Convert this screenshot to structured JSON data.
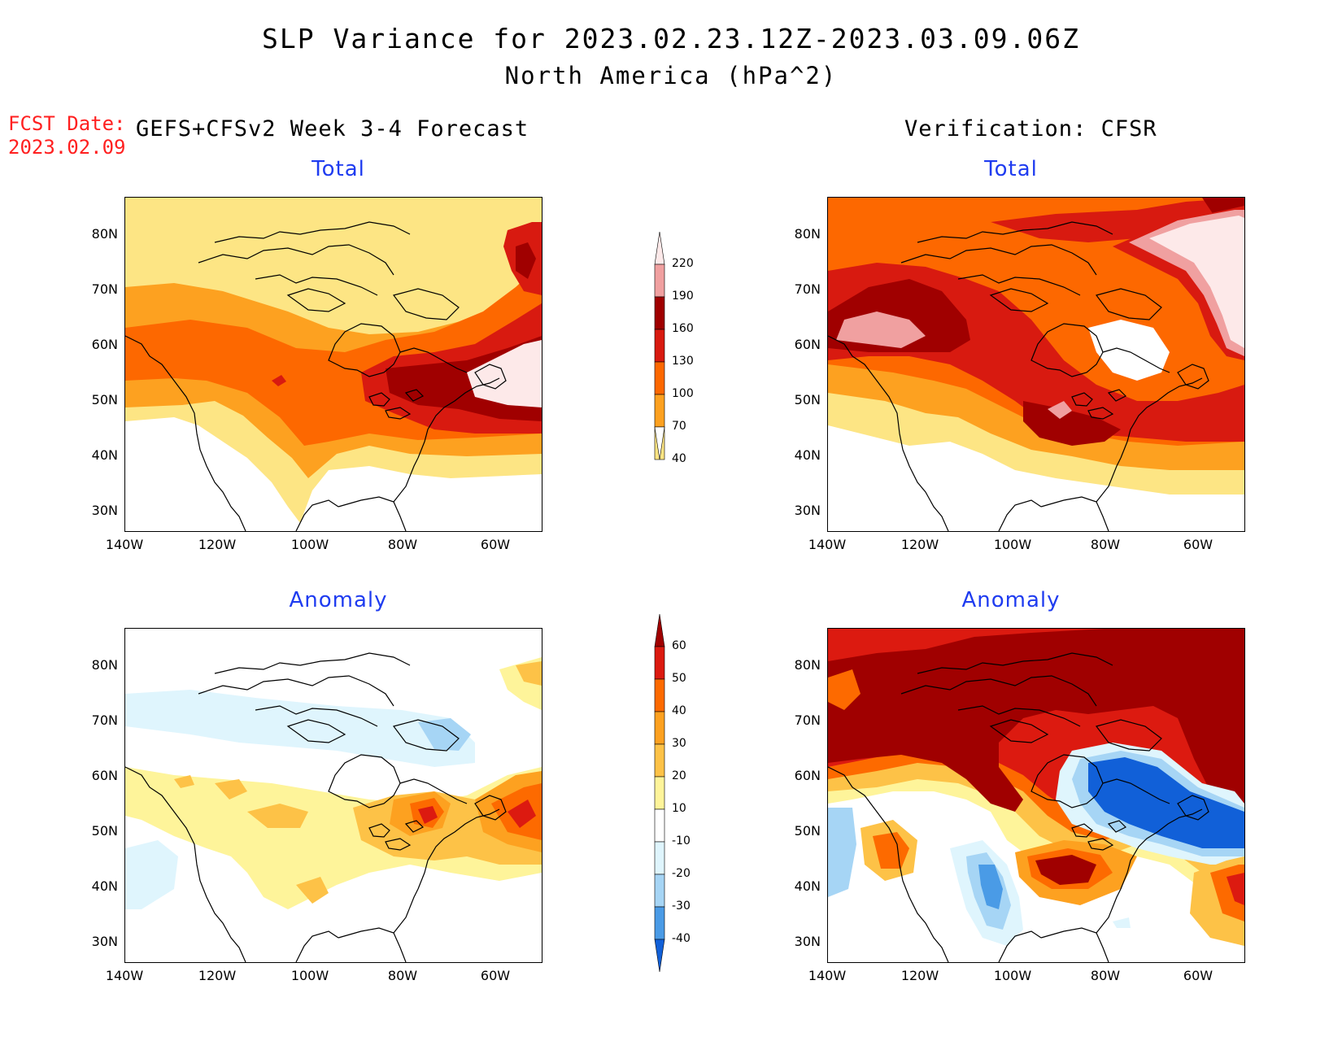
{
  "title": {
    "line1": "SLP Variance for 2023.02.23.12Z-2023.03.09.06Z",
    "line2": "North America (hPa^2)"
  },
  "fcst_date": {
    "label": "FCST Date:",
    "value": "2023.02.09"
  },
  "headers": {
    "forecast": "GEFS+CFSv2 Week 3-4 Forecast",
    "verification": "Verification: CFSR"
  },
  "panels": {
    "top_left": "Total",
    "top_right": "Total",
    "bottom_left": "Anomaly",
    "bottom_right": "Anomaly"
  },
  "axes": {
    "lat_labels": [
      "80N",
      "70N",
      "60N",
      "50N",
      "40N",
      "30N"
    ],
    "lon_labels": [
      "140W",
      "120W",
      "100W",
      "80W",
      "60W"
    ]
  },
  "colorbar_total": {
    "levels": [
      "220",
      "190",
      "160",
      "130",
      "100",
      "70",
      "40"
    ],
    "colors": [
      "#fde9e9",
      "#f0a0a0",
      "#a00000",
      "#d81a10",
      "#fd6800",
      "#fda120",
      "#fde584"
    ]
  },
  "colorbar_anom": {
    "levels": [
      "60",
      "50",
      "40",
      "30",
      "20",
      "10",
      "-10",
      "-20",
      "-30",
      "-40"
    ],
    "colors": [
      "#a00000",
      "#dc1a10",
      "#fd6a00",
      "#fda120",
      "#fdc247",
      "#fef49a",
      "#ffffff",
      "#dff5fd",
      "#a6d5f5",
      "#4a9be6",
      "#1160d8"
    ]
  }
}
